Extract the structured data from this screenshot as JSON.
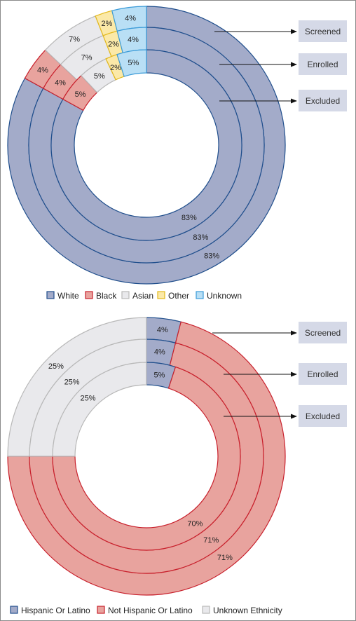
{
  "chart_data": [
    {
      "type": "donut",
      "title": "",
      "rings": [
        "Screened",
        "Enrolled",
        "Excluded"
      ],
      "categories": [
        "White",
        "Black",
        "Asian",
        "Other",
        "Unknown"
      ],
      "colors": [
        "#a3abc9",
        "#e8a39e",
        "#e9e9ec",
        "#fbe9a8",
        "#b9dff5"
      ],
      "stroke_colors": [
        "#1f4e8c",
        "#c8202c",
        "#b8b8b8",
        "#e3b81a",
        "#3b9bd8"
      ],
      "series": [
        {
          "name": "Screened",
          "values": [
            83,
            4,
            7,
            2,
            4
          ]
        },
        {
          "name": "Enrolled",
          "values": [
            83,
            4,
            7,
            2,
            4
          ]
        },
        {
          "name": "Excluded",
          "values": [
            83,
            5,
            5,
            2,
            5
          ]
        }
      ],
      "labels": [
        [
          "83%",
          "4%",
          "7%",
          "2%",
          "4%"
        ],
        [
          "83%",
          "4%",
          "7%",
          "2%",
          "4%"
        ],
        [
          "83%",
          "5%",
          "5%",
          "2%",
          "5%"
        ]
      ],
      "legend": [
        "White",
        "Black",
        "Asian",
        "Other",
        "Unknown"
      ],
      "legend_position": "bottom"
    },
    {
      "type": "donut",
      "title": "",
      "rings": [
        "Screened",
        "Enrolled",
        "Excluded"
      ],
      "categories": [
        "Hispanic Or Latino",
        "Not Hispanic Or Latino",
        "Unknown Ethnicity"
      ],
      "colors": [
        "#a3abc9",
        "#e8a39e",
        "#e9e9ec"
      ],
      "stroke_colors": [
        "#1f4e8c",
        "#c8202c",
        "#b8b8b8"
      ],
      "series": [
        {
          "name": "Screened",
          "values": [
            4,
            71,
            25
          ]
        },
        {
          "name": "Enrolled",
          "values": [
            4,
            71,
            25
          ]
        },
        {
          "name": "Excluded",
          "values": [
            5,
            70,
            25
          ]
        }
      ],
      "labels": [
        [
          "4%",
          "71%",
          "25%"
        ],
        [
          "4%",
          "71%",
          "25%"
        ],
        [
          "5%",
          "70%",
          "25%"
        ]
      ],
      "legend": [
        "Hispanic Or Latino",
        "Not Hispanic Or Latino",
        "Unknown Ethnicity"
      ],
      "legend_position": "bottom"
    }
  ]
}
